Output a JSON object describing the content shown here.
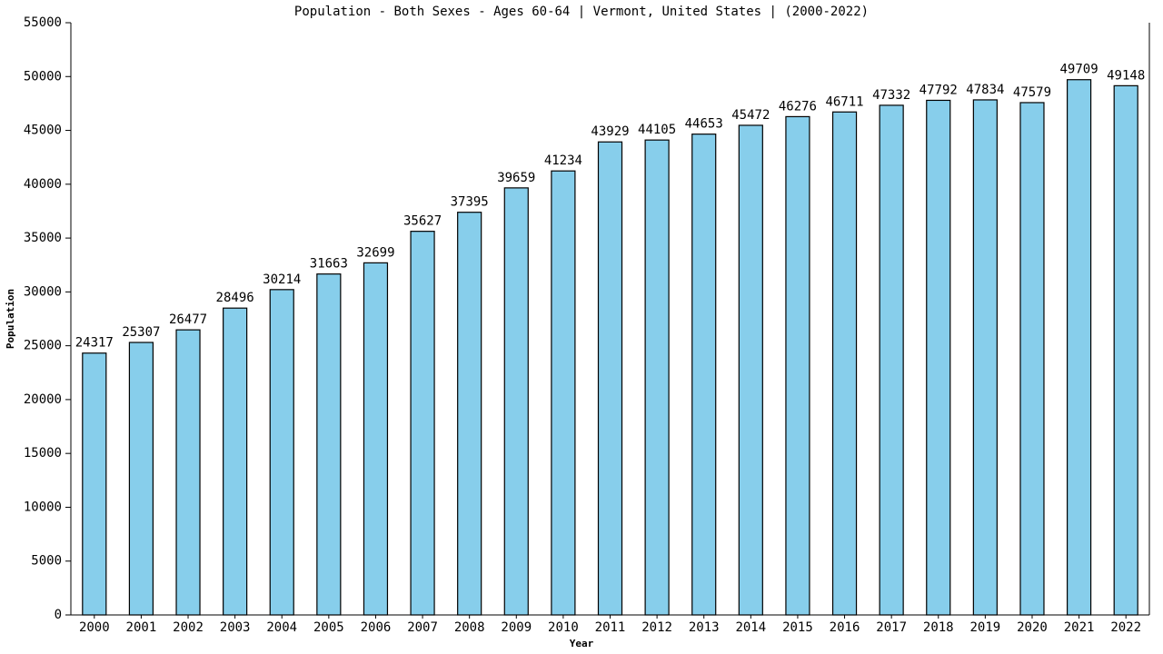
{
  "chart_data": {
    "type": "bar",
    "title": "Population - Both Sexes - Ages 60-64 | Vermont, United States |  (2000-2022)",
    "x_label": "Year",
    "y_label": "Population",
    "categories": [
      "2000",
      "2001",
      "2002",
      "2003",
      "2004",
      "2005",
      "2006",
      "2007",
      "2008",
      "2009",
      "2010",
      "2011",
      "2012",
      "2013",
      "2014",
      "2015",
      "2016",
      "2017",
      "2018",
      "2019",
      "2020",
      "2021",
      "2022"
    ],
    "values": [
      24317,
      25307,
      26477,
      28496,
      30214,
      31663,
      32699,
      35627,
      37395,
      39659,
      41234,
      43929,
      44105,
      44653,
      45472,
      46276,
      46711,
      47332,
      47792,
      47834,
      47579,
      49709,
      49148
    ],
    "color": "#87ceeb",
    "ylim": [
      0,
      55000
    ],
    "yticks": [
      0,
      5000,
      10000,
      15000,
      20000,
      25000,
      30000,
      35000,
      40000,
      45000,
      50000,
      55000
    ]
  }
}
